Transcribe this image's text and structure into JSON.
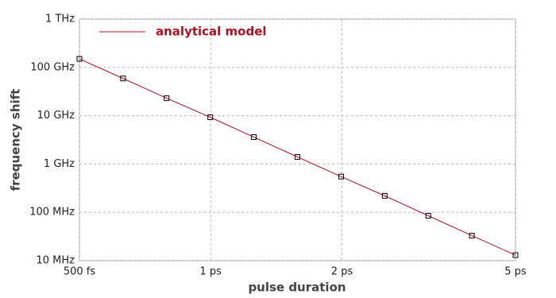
{
  "chart_data": {
    "type": "line",
    "xlabel": "pulse duration",
    "ylabel": "frequency shift",
    "xscale": "log",
    "yscale": "log",
    "grid": true,
    "legend": "upper left",
    "x": [
      0.5,
      0.6295,
      0.7924,
      0.9976,
      1.256,
      1.581,
      1.991,
      2.506,
      3.155,
      3.972,
      5
    ],
    "series": [
      {
        "name": "analytical model",
        "color": "#b01020",
        "markers": true,
        "values": [
          150000000000.0,
          59000000000.0,
          23000000000.0,
          9300000000.0,
          3600000000.0,
          1400000000.0,
          550000000.0,
          220000000.0,
          85000000.0,
          33000000.0,
          13000000.0
        ]
      }
    ],
    "xlim": [
      0.5,
      5
    ],
    "xticks": [
      {
        "value": 0.5,
        "label": "500 fs"
      },
      {
        "value": 1,
        "label": "1 ps"
      },
      {
        "value": 2,
        "label": "2 ps"
      },
      {
        "value": 5,
        "label": "5 ps"
      }
    ],
    "ylim": [
      10000000.0,
      1000000000000.0
    ],
    "yticks": [
      {
        "value": 10000000.0,
        "label": "10 MHz"
      },
      {
        "value": 100000000.0,
        "label": "100 MHz"
      },
      {
        "value": 1000000000.0,
        "label": "1 GHz"
      },
      {
        "value": 10000000000.0,
        "label": "10 GHz"
      },
      {
        "value": 100000000000.0,
        "label": "100 GHz"
      },
      {
        "value": 1000000000000.0,
        "label": "1 THz"
      }
    ]
  }
}
